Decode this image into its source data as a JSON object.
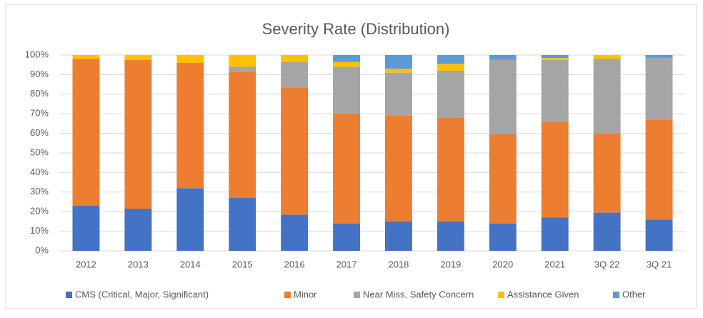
{
  "chart_data": {
    "type": "stacked_bar",
    "title": "Severity Rate (Distribution)",
    "categories": [
      "2012",
      "2013",
      "2014",
      "2015",
      "2016",
      "2017",
      "2018",
      "2019",
      "2020",
      "2021",
      "3Q 22",
      "3Q 21"
    ],
    "series": [
      {
        "name": "CMS (Critical, Major, Significant)",
        "color": "#4472c4",
        "values": [
          23,
          21.5,
          32,
          27,
          18.5,
          14,
          15,
          15,
          14,
          17,
          19.5,
          16
        ]
      },
      {
        "name": "Minor",
        "color": "#ed7d31",
        "values": [
          75,
          76,
          64,
          64.5,
          65,
          56,
          54,
          53,
          45.5,
          49,
          40.5,
          51
        ]
      },
      {
        "name": "Near Miss, Safety Concern",
        "color": "#a5a5a5",
        "values": [
          0,
          0,
          0,
          2.5,
          13,
          24,
          22,
          24,
          38,
          31.5,
          38,
          31.5
        ]
      },
      {
        "name": "Assistance Given",
        "color": "#ffc000",
        "values": [
          2,
          2.5,
          4,
          6,
          3.5,
          2.5,
          2,
          3.5,
          0,
          1,
          2,
          0
        ]
      },
      {
        "name": "Other",
        "color": "#5b9bd5",
        "values": [
          0,
          0,
          0,
          0,
          0,
          3.5,
          7,
          4.5,
          2.5,
          1.5,
          0,
          1.5
        ]
      }
    ],
    "ylim": [
      0,
      100
    ],
    "yticks": [
      {
        "value": 0,
        "label": "0%"
      },
      {
        "value": 10,
        "label": "10%"
      },
      {
        "value": 20,
        "label": "20%"
      },
      {
        "value": 30,
        "label": "30%"
      },
      {
        "value": 40,
        "label": "40%"
      },
      {
        "value": 50,
        "label": "50%"
      },
      {
        "value": 60,
        "label": "60%"
      },
      {
        "value": 70,
        "label": "70%"
      },
      {
        "value": 80,
        "label": "80%"
      },
      {
        "value": 90,
        "label": "90%"
      },
      {
        "value": 100,
        "label": "100%"
      }
    ],
    "grid": true,
    "legend": "bottom"
  }
}
